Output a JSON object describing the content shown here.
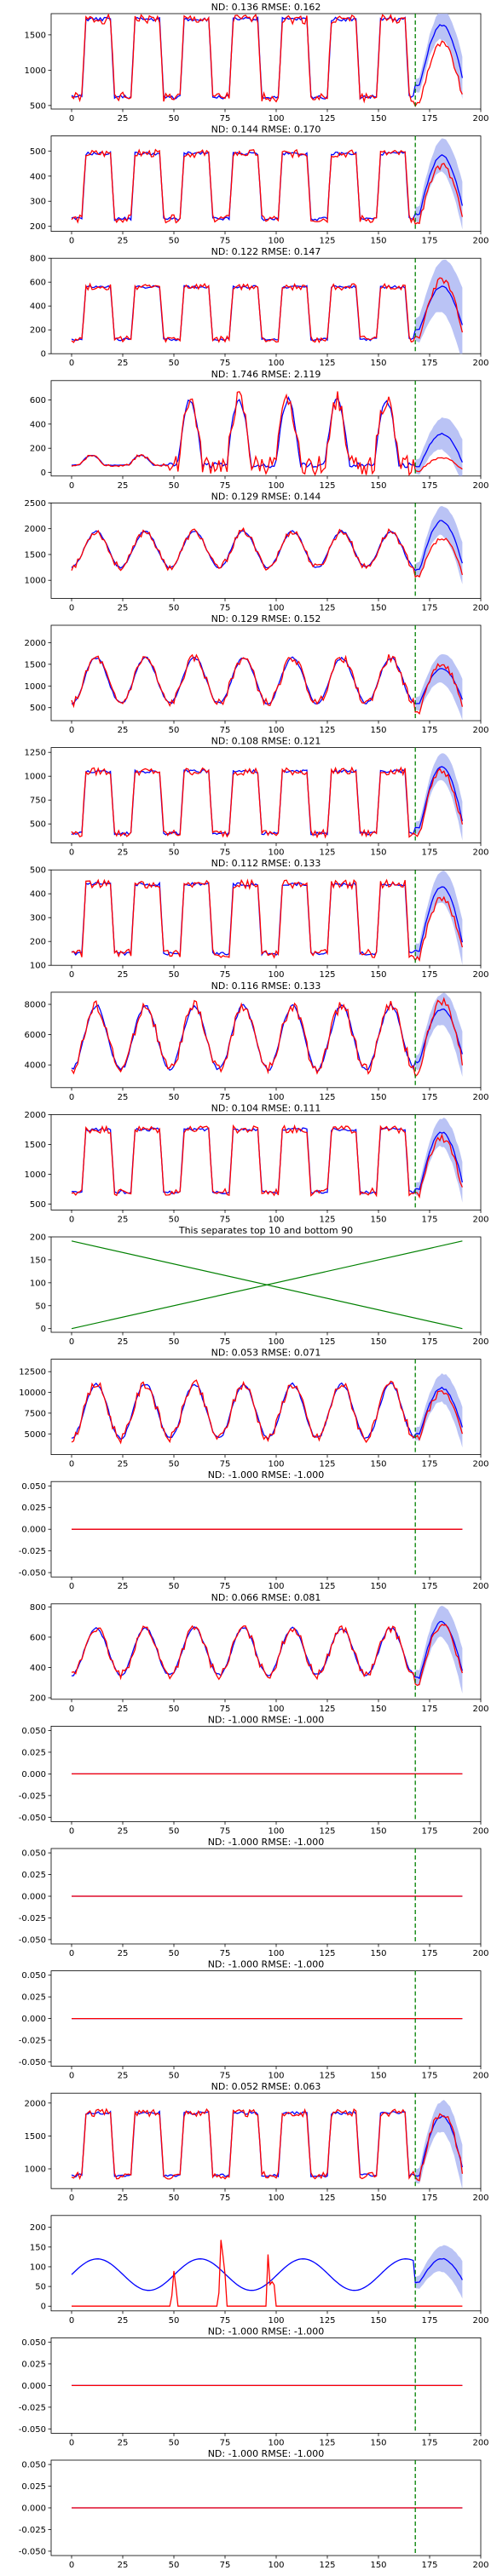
{
  "colors": {
    "truth": "#ff0000",
    "prediction": "#0000ff",
    "band": "#a9b4f2",
    "split_line": "#008000",
    "separator_lines": "#008000"
  },
  "chart_data": [
    {
      "type": "line",
      "title": "ND:  0.136 RMSE:  0.162",
      "xlim": [
        -10,
        200
      ],
      "ylim": [
        450,
        1800
      ],
      "yticks": [
        500,
        1000,
        1500
      ],
      "xticks": [
        0,
        25,
        50,
        75,
        100,
        125,
        150,
        175,
        200
      ],
      "split": 168,
      "pattern": {
        "kind": "weekday",
        "low": 620,
        "high": 1720,
        "dips": [
          0.55,
          1.0
        ]
      },
      "forecast": {
        "truth_low": 520,
        "truth_high": 1370,
        "pred_low": 780,
        "pred_high": 1640,
        "band": 220
      }
    },
    {
      "type": "line",
      "title": "ND:  0.144 RMSE:  0.170",
      "xlim": [
        -10,
        200
      ],
      "ylim": [
        180,
        560
      ],
      "yticks": [
        200,
        300,
        400,
        500
      ],
      "xticks": [
        0,
        25,
        50,
        75,
        100,
        125,
        150,
        175,
        200
      ],
      "split": 168,
      "pattern": {
        "kind": "weekday",
        "low": 230,
        "high": 490,
        "dips": [
          1.0
        ]
      },
      "forecast": {
        "truth_low": 220,
        "truth_high": 440,
        "pred_low": 250,
        "pred_high": 480,
        "band": 70
      }
    },
    {
      "type": "line",
      "title": "ND:  0.122 RMSE:  0.147",
      "xlim": [
        -10,
        200
      ],
      "ylim": [
        0,
        800
      ],
      "yticks": [
        0,
        200,
        400,
        600,
        800
      ],
      "xticks": [
        0,
        25,
        50,
        75,
        100,
        125,
        150,
        175,
        200
      ],
      "split": 168,
      "pattern": {
        "kind": "weekday",
        "low": 120,
        "high": 560,
        "dips": [
          1.0
        ]
      },
      "forecast": {
        "truth_low": 120,
        "truth_high": 620,
        "pred_low": 200,
        "pred_high": 560,
        "band": 230
      }
    },
    {
      "type": "line",
      "title": "ND:  1.746 RMSE:  2.119",
      "xlim": [
        -10,
        200
      ],
      "ylim": [
        -30,
        760
      ],
      "yticks": [
        0,
        200,
        400,
        600
      ],
      "xticks": [
        0,
        25,
        50,
        75,
        100,
        125,
        150,
        175,
        200
      ],
      "split": 168,
      "pattern": {
        "kind": "spiky",
        "low": 60,
        "high": 600
      },
      "forecast": {
        "truth_low": 10,
        "truth_high": 120,
        "pred_low": 50,
        "pred_high": 320,
        "band": 140
      }
    },
    {
      "type": "line",
      "title": "ND:  0.129 RMSE:  0.144",
      "xlim": [
        -10,
        200
      ],
      "ylim": [
        650,
        2500
      ],
      "yticks": [
        1000,
        1500,
        2000,
        2500
      ],
      "xticks": [
        0,
        25,
        50,
        75,
        100,
        125,
        150,
        175,
        200
      ],
      "split": 168,
      "pattern": {
        "kind": "smooth",
        "low": 1250,
        "high": 1950
      },
      "forecast": {
        "truth_low": 1050,
        "truth_high": 1800,
        "pred_low": 1200,
        "pred_high": 2150,
        "band": 300
      }
    },
    {
      "type": "line",
      "title": "ND:  0.129 RMSE:  0.152",
      "xlim": [
        -10,
        200
      ],
      "ylim": [
        200,
        2400
      ],
      "yticks": [
        500,
        1000,
        1500,
        2000
      ],
      "xticks": [
        0,
        25,
        50,
        75,
        100,
        125,
        150,
        175,
        200
      ],
      "split": 168,
      "pattern": {
        "kind": "smooth",
        "low": 600,
        "high": 1650
      },
      "forecast": {
        "truth_low": 400,
        "truth_high": 1500,
        "pred_low": 600,
        "pred_high": 1400,
        "band": 350
      }
    },
    {
      "type": "line",
      "title": "ND:  0.108 RMSE:  0.121",
      "xlim": [
        -10,
        200
      ],
      "ylim": [
        300,
        1300
      ],
      "yticks": [
        500,
        750,
        1000,
        1250
      ],
      "xticks": [
        0,
        25,
        50,
        75,
        100,
        125,
        150,
        175,
        200
      ],
      "split": 168,
      "pattern": {
        "kind": "weekday",
        "low": 400,
        "high": 1050,
        "dips": [
          1.0
        ]
      },
      "forecast": {
        "truth_low": 400,
        "truth_high": 1050,
        "pred_low": 450,
        "pred_high": 1100,
        "band": 150
      }
    },
    {
      "type": "line",
      "title": "ND:  0.112 RMSE:  0.133",
      "xlim": [
        -10,
        200
      ],
      "ylim": [
        100,
        500
      ],
      "yticks": [
        100,
        200,
        300,
        400,
        500
      ],
      "xticks": [
        0,
        25,
        50,
        75,
        100,
        125,
        150,
        175,
        200
      ],
      "split": 168,
      "pattern": {
        "kind": "weekday",
        "low": 150,
        "high": 440,
        "dips": [
          1.0
        ]
      },
      "forecast": {
        "truth_low": 130,
        "truth_high": 380,
        "pred_low": 160,
        "pred_high": 430,
        "band": 70
      }
    },
    {
      "type": "line",
      "title": "ND:  0.116 RMSE:  0.133",
      "xlim": [
        -10,
        200
      ],
      "ylim": [
        2500,
        8800
      ],
      "yticks": [
        4000,
        6000,
        8000
      ],
      "xticks": [
        0,
        25,
        50,
        75,
        100,
        125,
        150,
        175,
        200
      ],
      "split": 168,
      "pattern": {
        "kind": "smooth",
        "low": 3700,
        "high": 7900
      },
      "forecast": {
        "truth_low": 3500,
        "truth_high": 8200,
        "pred_low": 4200,
        "pred_high": 7700,
        "band": 1100
      }
    },
    {
      "type": "line",
      "title": "ND:  0.104 RMSE:  0.111",
      "xlim": [
        -10,
        200
      ],
      "ylim": [
        400,
        2000
      ],
      "yticks": [
        500,
        1000,
        1500,
        2000
      ],
      "xticks": [
        0,
        25,
        50,
        75,
        100,
        125,
        150,
        175,
        200
      ],
      "split": 168,
      "pattern": {
        "kind": "weekday",
        "low": 700,
        "high": 1750,
        "dips": [
          1.0
        ]
      },
      "forecast": {
        "truth_low": 650,
        "truth_high": 1600,
        "pred_low": 750,
        "pred_high": 1700,
        "band": 250
      }
    },
    {
      "type": "line",
      "title": "This separates top 10 and bottom 90",
      "xlim": [
        -10,
        200
      ],
      "ylim": [
        -8,
        200
      ],
      "yticks": [
        0,
        50,
        100,
        150,
        200
      ],
      "xticks": [
        0,
        25,
        50,
        75,
        100,
        125,
        150,
        175,
        200
      ],
      "split": null,
      "lines": [
        {
          "x": [
            0,
            191
          ],
          "y": [
            191,
            0
          ]
        },
        {
          "x": [
            0,
            191
          ],
          "y": [
            0,
            191
          ]
        }
      ]
    },
    {
      "type": "line",
      "title": "ND:  0.053 RMSE:  0.071",
      "xlim": [
        -10,
        200
      ],
      "ylim": [
        2500,
        14000
      ],
      "yticks": [
        5000,
        7500,
        10000,
        12500
      ],
      "xticks": [
        0,
        25,
        50,
        75,
        100,
        125,
        150,
        175,
        200
      ],
      "split": 168,
      "pattern": {
        "kind": "smooth",
        "low": 4500,
        "high": 11000
      },
      "forecast": {
        "truth_low": 4500,
        "truth_high": 10000,
        "pred_low": 5000,
        "pred_high": 10500,
        "band": 1800
      }
    },
    {
      "type": "line",
      "title": "ND:  -1.000 RMSE:  -1.000",
      "xlim": [
        -10,
        200
      ],
      "ylim": [
        -0.055,
        0.055
      ],
      "yticks": [
        -0.05,
        -0.025,
        0.0,
        0.025,
        0.05
      ],
      "xticks": [
        0,
        25,
        50,
        75,
        100,
        125,
        150,
        175,
        200
      ],
      "split": 168,
      "pattern": {
        "kind": "flat",
        "low": 0,
        "high": 0
      }
    },
    {
      "type": "line",
      "title": "ND:  0.066 RMSE:  0.081",
      "xlim": [
        -10,
        200
      ],
      "ylim": [
        190,
        820
      ],
      "yticks": [
        200,
        400,
        600,
        800
      ],
      "xticks": [
        0,
        25,
        50,
        75,
        100,
        125,
        150,
        175,
        200
      ],
      "split": 168,
      "pattern": {
        "kind": "smooth",
        "low": 350,
        "high": 660
      },
      "forecast": {
        "truth_low": 300,
        "truth_high": 680,
        "pred_low": 330,
        "pred_high": 700,
        "band": 110
      }
    },
    {
      "type": "line",
      "title": "ND:  -1.000 RMSE:  -1.000",
      "xlim": [
        -10,
        200
      ],
      "ylim": [
        -0.055,
        0.055
      ],
      "yticks": [
        -0.05,
        -0.025,
        0.0,
        0.025,
        0.05
      ],
      "xticks": [
        0,
        25,
        50,
        75,
        100,
        125,
        150,
        175,
        200
      ],
      "split": 168,
      "pattern": {
        "kind": "flat",
        "low": 0,
        "high": 0
      }
    },
    {
      "type": "line",
      "title": "ND:  -1.000 RMSE:  -1.000",
      "xlim": [
        -10,
        200
      ],
      "ylim": [
        -0.055,
        0.055
      ],
      "yticks": [
        -0.05,
        -0.025,
        0.0,
        0.025,
        0.05
      ],
      "xticks": [
        0,
        25,
        50,
        75,
        100,
        125,
        150,
        175,
        200
      ],
      "split": 168,
      "pattern": {
        "kind": "flat",
        "low": 0,
        "high": 0
      }
    },
    {
      "type": "line",
      "title": "ND:  -1.000 RMSE:  -1.000",
      "xlim": [
        -10,
        200
      ],
      "ylim": [
        -0.055,
        0.055
      ],
      "yticks": [
        -0.05,
        -0.025,
        0.0,
        0.025,
        0.05
      ],
      "xticks": [
        0,
        25,
        50,
        75,
        100,
        125,
        150,
        175,
        200
      ],
      "split": 168,
      "pattern": {
        "kind": "flat",
        "low": 0,
        "high": 0
      }
    },
    {
      "type": "line",
      "title": "ND:  0.052 RMSE:  0.063",
      "xlim": [
        -10,
        200
      ],
      "ylim": [
        700,
        2150
      ],
      "yticks": [
        1000,
        1500,
        2000
      ],
      "xticks": [
        0,
        25,
        50,
        75,
        100,
        125,
        150,
        175,
        200
      ],
      "split": 168,
      "pattern": {
        "kind": "weekday",
        "low": 900,
        "high": 1850,
        "dips": [
          1.0
        ]
      },
      "forecast": {
        "truth_low": 850,
        "truth_high": 1850,
        "pred_low": 900,
        "pred_high": 1800,
        "band": 250
      }
    },
    {
      "type": "line",
      "title": "",
      "xlim": [
        -10,
        200
      ],
      "ylim": [
        -12,
        230
      ],
      "yticks": [
        0,
        50,
        100,
        150,
        200
      ],
      "xticks": [
        0,
        25,
        50,
        75,
        100,
        125,
        150,
        175,
        200
      ],
      "split": 168,
      "pattern": {
        "kind": "sparse",
        "low": 40,
        "high": 120
      },
      "forecast": {
        "truth_low": 0,
        "truth_high": 0,
        "pred_low": 60,
        "pred_high": 120,
        "band": 35
      }
    },
    {
      "type": "line",
      "title": "ND:  -1.000 RMSE:  -1.000",
      "xlim": [
        -10,
        200
      ],
      "ylim": [
        -0.055,
        0.055
      ],
      "yticks": [
        -0.05,
        -0.025,
        0.0,
        0.025,
        0.05
      ],
      "xticks": [
        0,
        25,
        50,
        75,
        100,
        125,
        150,
        175,
        200
      ],
      "split": 168,
      "pattern": {
        "kind": "flat",
        "low": 0,
        "high": 0
      }
    },
    {
      "type": "line",
      "title": "ND:  -1.000 RMSE:  -1.000",
      "xlim": [
        -10,
        200
      ],
      "ylim": [
        -0.055,
        0.055
      ],
      "yticks": [
        -0.05,
        -0.025,
        0.0,
        0.025,
        0.05
      ],
      "xticks": [
        0,
        25,
        50,
        75,
        100,
        125,
        150,
        175,
        200
      ],
      "split": 168,
      "pattern": {
        "kind": "flat",
        "low": 0,
        "high": 0
      }
    }
  ]
}
